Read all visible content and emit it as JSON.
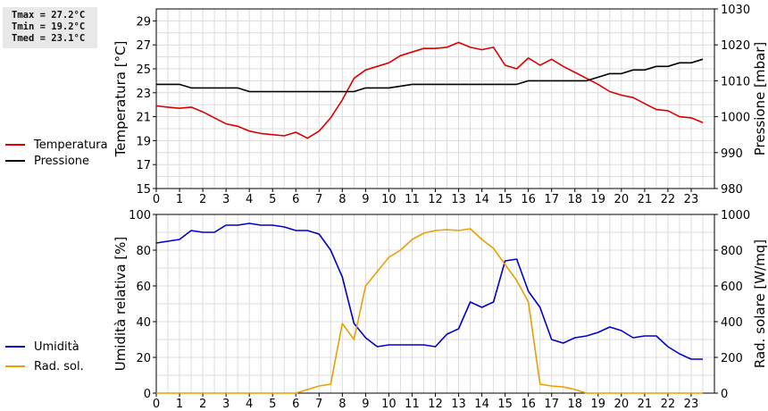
{
  "stats": {
    "tmax": "Tmax = 27.2°C",
    "tmin": "Tmin = 19.2°C",
    "tmed": "Tmed = 23.1°C"
  },
  "chart_data": [
    {
      "type": "line",
      "xlabel": "",
      "ylabel": "Temperatura [°C]",
      "y2label": "Pressione [mbar]",
      "xlim": [
        0,
        24
      ],
      "x_ticks": [
        0,
        1,
        2,
        3,
        4,
        5,
        6,
        7,
        8,
        9,
        10,
        11,
        12,
        13,
        14,
        15,
        16,
        17,
        18,
        19,
        20,
        21,
        22,
        23
      ],
      "ylim": [
        15,
        30
      ],
      "y_ticks": [
        15,
        17,
        19,
        21,
        23,
        25,
        27,
        29
      ],
      "y2lim": [
        980,
        1030
      ],
      "y2_ticks": [
        980,
        990,
        1000,
        1010,
        1020,
        1030
      ],
      "grid": true,
      "legend_position": "left",
      "series": [
        {
          "name": "Temperatura",
          "axis": "left",
          "color": "#dd0000",
          "x": [
            0,
            0.5,
            1,
            1.5,
            2,
            2.5,
            3,
            3.5,
            4,
            4.5,
            5,
            5.5,
            6,
            6.5,
            7,
            7.5,
            8,
            8.5,
            9,
            9.5,
            10,
            10.5,
            11,
            11.5,
            12,
            12.5,
            13,
            13.5,
            14,
            14.5,
            15,
            15.5,
            16,
            16.5,
            17,
            17.5,
            18,
            18.5,
            19,
            19.5,
            20,
            20.5,
            21,
            21.5,
            22,
            22.5,
            23,
            23.5
          ],
          "values": [
            21.9,
            21.8,
            21.7,
            21.8,
            21.4,
            20.9,
            20.4,
            20.2,
            19.8,
            19.6,
            19.5,
            19.4,
            19.7,
            19.2,
            19.8,
            20.9,
            22.4,
            24.2,
            24.9,
            25.2,
            25.5,
            26.1,
            26.4,
            26.7,
            26.7,
            26.8,
            27.2,
            26.8,
            26.6,
            26.8,
            25.3,
            25.0,
            25.9,
            25.3,
            25.8,
            25.2,
            24.7,
            24.2,
            23.7,
            23.1,
            22.8,
            22.6,
            22.1,
            21.6,
            21.5,
            21.0,
            20.9,
            20.5
          ]
        },
        {
          "name": "Pressione",
          "axis": "right",
          "color": "#000000",
          "x": [
            0,
            1,
            1.5,
            2,
            3,
            3.5,
            4,
            5,
            6,
            7,
            8,
            8.5,
            9,
            10,
            11,
            12,
            13,
            14,
            15,
            15.5,
            16,
            17,
            18,
            18.5,
            19,
            19.5,
            20,
            20.5,
            21,
            21.5,
            22,
            22.5,
            23,
            23.5
          ],
          "values": [
            1009,
            1009,
            1008,
            1008,
            1008,
            1008,
            1007,
            1007,
            1007,
            1007,
            1007,
            1007,
            1008,
            1008,
            1009,
            1009,
            1009,
            1009,
            1009,
            1009,
            1010,
            1010,
            1010,
            1010,
            1011,
            1012,
            1012,
            1013,
            1013,
            1014,
            1014,
            1015,
            1015,
            1016
          ]
        }
      ]
    },
    {
      "type": "line",
      "xlabel": "",
      "ylabel": "Umidità relativa [%]",
      "y2label": "Rad. solare [W/mq]",
      "xlim": [
        0,
        24
      ],
      "x_ticks": [
        0,
        1,
        2,
        3,
        4,
        5,
        6,
        7,
        8,
        9,
        10,
        11,
        12,
        13,
        14,
        15,
        16,
        17,
        18,
        19,
        20,
        21,
        22,
        23
      ],
      "ylim": [
        0,
        100
      ],
      "y_ticks": [
        0,
        20,
        40,
        60,
        80,
        100
      ],
      "y2lim": [
        0,
        1000
      ],
      "y2_ticks": [
        0,
        200,
        400,
        600,
        800,
        1000
      ],
      "grid": true,
      "legend_position": "left",
      "series": [
        {
          "name": "Umidità",
          "axis": "left",
          "color": "#0000cc",
          "x": [
            0,
            0.5,
            1,
            1.5,
            2,
            2.5,
            3,
            3.5,
            4,
            4.5,
            5,
            5.5,
            6,
            6.5,
            7,
            7.5,
            8,
            8.5,
            9,
            9.5,
            10,
            10.5,
            11,
            11.5,
            12,
            12.5,
            13,
            13.5,
            14,
            14.5,
            15,
            15.5,
            16,
            16.5,
            17,
            17.5,
            18,
            18.5,
            19,
            19.5,
            20,
            20.5,
            21,
            21.5,
            22,
            22.5,
            23,
            23.5
          ],
          "values": [
            84,
            85,
            86,
            91,
            90,
            90,
            94,
            94,
            95,
            94,
            94,
            93,
            91,
            91,
            89,
            80,
            65,
            39,
            31,
            26,
            27,
            27,
            27,
            27,
            26,
            33,
            36,
            51,
            48,
            51,
            74,
            75,
            57,
            48,
            30,
            28,
            31,
            32,
            34,
            37,
            35,
            31,
            32,
            32,
            26,
            22,
            19,
            19
          ]
        },
        {
          "name": "Rad. sol.",
          "axis": "right",
          "color": "#e8a000",
          "x": [
            0,
            1,
            2,
            3,
            4,
            5,
            6,
            6.5,
            7,
            7.5,
            8,
            8.5,
            9,
            9.5,
            10,
            10.5,
            11,
            11.5,
            12,
            12.5,
            13,
            13.5,
            14,
            14.5,
            15,
            15.5,
            16,
            16.5,
            17,
            17.5,
            18,
            18.5,
            19,
            20,
            21,
            22,
            23,
            23.5
          ],
          "values": [
            0,
            0,
            0,
            0,
            0,
            0,
            0,
            20,
            40,
            50,
            390,
            300,
            600,
            680,
            760,
            800,
            860,
            895,
            910,
            915,
            910,
            920,
            860,
            810,
            720,
            630,
            510,
            50,
            40,
            35,
            20,
            0,
            0,
            0,
            0,
            0,
            0,
            0
          ]
        }
      ]
    }
  ]
}
